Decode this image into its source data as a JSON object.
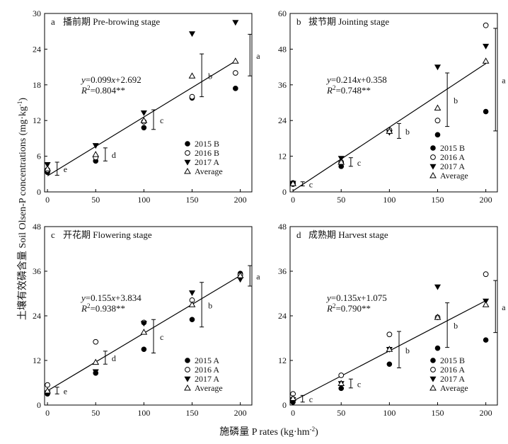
{
  "figure": {
    "y_axis_label": "土壤有效磷含量 Soil Olsen-P concentrations (mg·kg",
    "y_axis_label_sup": "-1",
    "y_axis_label_end": ")",
    "x_axis_label": "施磷量 P rates (kg·hm",
    "x_axis_label_sup": "-2",
    "x_axis_label_end": ")"
  },
  "chart_data": [
    {
      "type": "scatter",
      "panel": "a",
      "title": "播前期 Pre-browing stage",
      "x_ticks": [
        0,
        50,
        100,
        150,
        200
      ],
      "y_ticks": [
        0,
        6,
        12,
        18,
        24,
        30
      ],
      "xlim": [
        -3,
        212
      ],
      "ylim": [
        0,
        30
      ],
      "series": [
        {
          "name": "2015 B",
          "marker": "filled-circle",
          "x": [
            0,
            50,
            100,
            150,
            195
          ],
          "y": [
            3.3,
            5.2,
            10.8,
            15.8,
            17.4
          ]
        },
        {
          "name": "2016 B",
          "marker": "open-circle",
          "x": [
            0,
            50,
            100,
            150,
            195
          ],
          "y": [
            3.7,
            5.8,
            11.8,
            16.0,
            20.0
          ]
        },
        {
          "name": "2017 A",
          "marker": "filled-triangle-down",
          "x": [
            0,
            50,
            100,
            150,
            195
          ],
          "y": [
            4.6,
            7.8,
            13.3,
            26.6,
            28.5
          ]
        },
        {
          "name": "Average",
          "marker": "open-triangle-up",
          "x": [
            0,
            50,
            100,
            150,
            195
          ],
          "y": [
            3.9,
            6.3,
            12.0,
            19.5,
            22.0
          ]
        }
      ],
      "fit": {
        "slope": 0.099,
        "intercept": 2.692,
        "x_range": [
          0,
          195
        ]
      },
      "equation": "=0.099",
      "equation_end": "+2.692",
      "r2_value": "=0.804**",
      "error_bars": [
        {
          "x": 10,
          "low": 2.8,
          "high": 5.0,
          "label": "e"
        },
        {
          "x": 60,
          "low": 5.2,
          "high": 7.4,
          "label": "d"
        },
        {
          "x": 110,
          "low": 10.5,
          "high": 13.8,
          "label": "c"
        },
        {
          "x": 160,
          "low": 16.0,
          "high": 23.2,
          "label": "b"
        },
        {
          "x": 210,
          "low": 19.5,
          "high": 26.5,
          "label": "a"
        }
      ],
      "legend": "center-right"
    },
    {
      "type": "scatter",
      "panel": "b",
      "title": "拔节期 Jointing stage",
      "x_ticks": [
        0,
        50,
        100,
        150,
        200
      ],
      "y_ticks": [
        0,
        12,
        24,
        36,
        48,
        60
      ],
      "xlim": [
        -3,
        212
      ],
      "ylim": [
        0,
        60
      ],
      "series": [
        {
          "name": "2015 B",
          "marker": "filled-circle",
          "x": [
            0,
            50,
            100,
            150,
            200
          ],
          "y": [
            2.6,
            8.6,
            20.4,
            19.2,
            27.0
          ]
        },
        {
          "name": "2016 A",
          "marker": "open-circle",
          "x": [
            0,
            50,
            100,
            150,
            200
          ],
          "y": [
            3.0,
            10.0,
            20.8,
            24.0,
            56.0
          ]
        },
        {
          "name": "2017 A",
          "marker": "filled-triangle-down",
          "x": [
            0,
            50,
            100,
            150,
            200
          ],
          "y": [
            2.9,
            11.3,
            20.0,
            42.0,
            49.0
          ]
        },
        {
          "name": "Average",
          "marker": "open-triangle-up",
          "x": [
            0,
            50,
            100,
            150,
            200
          ],
          "y": [
            2.8,
            10.0,
            20.4,
            28.2,
            44.0
          ]
        }
      ],
      "fit": {
        "slope": 0.214,
        "intercept": 0.358,
        "x_range": [
          0,
          200
        ]
      },
      "equation": "=0.214",
      "equation_end": "+0.358",
      "r2_value": "=0.748**",
      "error_bars": [
        {
          "x": 10,
          "low": 2.0,
          "high": 3.4,
          "label": "c"
        },
        {
          "x": 60,
          "low": 8.6,
          "high": 11.5,
          "label": "c"
        },
        {
          "x": 110,
          "low": 18.0,
          "high": 23.0,
          "label": "b"
        },
        {
          "x": 160,
          "low": 22.0,
          "high": 40.0,
          "label": "b"
        },
        {
          "x": 210,
          "low": 20.5,
          "high": 55.0,
          "label": "a"
        }
      ],
      "legend": "bottom-right"
    },
    {
      "type": "scatter",
      "panel": "c",
      "title": "开花期 Flowering stage",
      "x_ticks": [
        0,
        50,
        100,
        150,
        200
      ],
      "y_ticks": [
        0,
        12,
        24,
        36,
        48
      ],
      "xlim": [
        -3,
        212
      ],
      "ylim": [
        0,
        48
      ],
      "series": [
        {
          "name": "2015 A",
          "marker": "filled-circle",
          "x": [
            0,
            50,
            100,
            150,
            200
          ],
          "y": [
            3.0,
            8.6,
            15.0,
            23.0,
            35.4
          ]
        },
        {
          "name": "2016 A",
          "marker": "open-circle",
          "x": [
            0,
            50,
            100,
            150,
            200
          ],
          "y": [
            5.4,
            17.0,
            22.2,
            28.2,
            35.0
          ]
        },
        {
          "name": "2017 A",
          "marker": "filled-triangle-down",
          "x": [
            0,
            50,
            100,
            150,
            200
          ],
          "y": [
            3.3,
            9.0,
            22.0,
            30.2,
            33.8
          ]
        },
        {
          "name": "Average",
          "marker": "open-triangle-up",
          "x": [
            0,
            50,
            100,
            150,
            200
          ],
          "y": [
            3.8,
            11.5,
            19.6,
            27.0,
            34.8
          ]
        }
      ],
      "fit": {
        "slope": 0.155,
        "intercept": 3.834,
        "x_range": [
          0,
          200
        ]
      },
      "equation": "=0.155",
      "equation_end": "+3.834",
      "r2_value": "=0.938**",
      "error_bars": [
        {
          "x": 10,
          "low": 3.0,
          "high": 4.8,
          "label": "e"
        },
        {
          "x": 60,
          "low": 11.0,
          "high": 14.5,
          "label": "d"
        },
        {
          "x": 110,
          "low": 14.0,
          "high": 23.0,
          "label": "c"
        },
        {
          "x": 160,
          "low": 21.0,
          "high": 33.0,
          "label": "b"
        },
        {
          "x": 210,
          "low": 32.0,
          "high": 37.5,
          "label": "a"
        }
      ],
      "legend": "bottom-right"
    },
    {
      "type": "scatter",
      "panel": "d",
      "title": "成熟期 Harvest  stage",
      "x_ticks": [
        0,
        50,
        100,
        150,
        200
      ],
      "y_ticks": [
        0,
        12,
        24,
        36,
        48
      ],
      "xlim": [
        -3,
        212
      ],
      "ylim": [
        0,
        48
      ],
      "series": [
        {
          "name": "2015 B",
          "marker": "filled-circle",
          "x": [
            0,
            50,
            100,
            150,
            200
          ],
          "y": [
            0.8,
            4.5,
            11.0,
            15.3,
            17.5
          ]
        },
        {
          "name": "2016 A",
          "marker": "open-circle",
          "x": [
            0,
            50,
            100,
            150,
            200
          ],
          "y": [
            3.0,
            8.0,
            19.0,
            23.6,
            35.2
          ]
        },
        {
          "name": "2017 A",
          "marker": "filled-triangle-down",
          "x": [
            0,
            50,
            100,
            150,
            200
          ],
          "y": [
            1.5,
            5.8,
            15.0,
            31.8,
            28.0
          ]
        },
        {
          "name": "Average",
          "marker": "open-triangle-up",
          "x": [
            0,
            50,
            100,
            150,
            200
          ],
          "y": [
            1.8,
            5.8,
            15.0,
            23.6,
            27.0
          ]
        }
      ],
      "fit": {
        "slope": 0.135,
        "intercept": 1.075,
        "x_range": [
          0,
          200
        ]
      },
      "equation": "=0.135",
      "equation_end": "+1.075",
      "r2_value": "=0.790**",
      "error_bars": [
        {
          "x": 10,
          "low": 0.8,
          "high": 2.6,
          "label": "c"
        },
        {
          "x": 60,
          "low": 4.6,
          "high": 7.0,
          "label": "c"
        },
        {
          "x": 110,
          "low": 10.0,
          "high": 19.8,
          "label": "b"
        },
        {
          "x": 160,
          "low": 15.5,
          "high": 27.5,
          "label": "b"
        },
        {
          "x": 210,
          "low": 19.5,
          "high": 33.5,
          "label": "a"
        }
      ],
      "legend": "bottom-right"
    }
  ]
}
